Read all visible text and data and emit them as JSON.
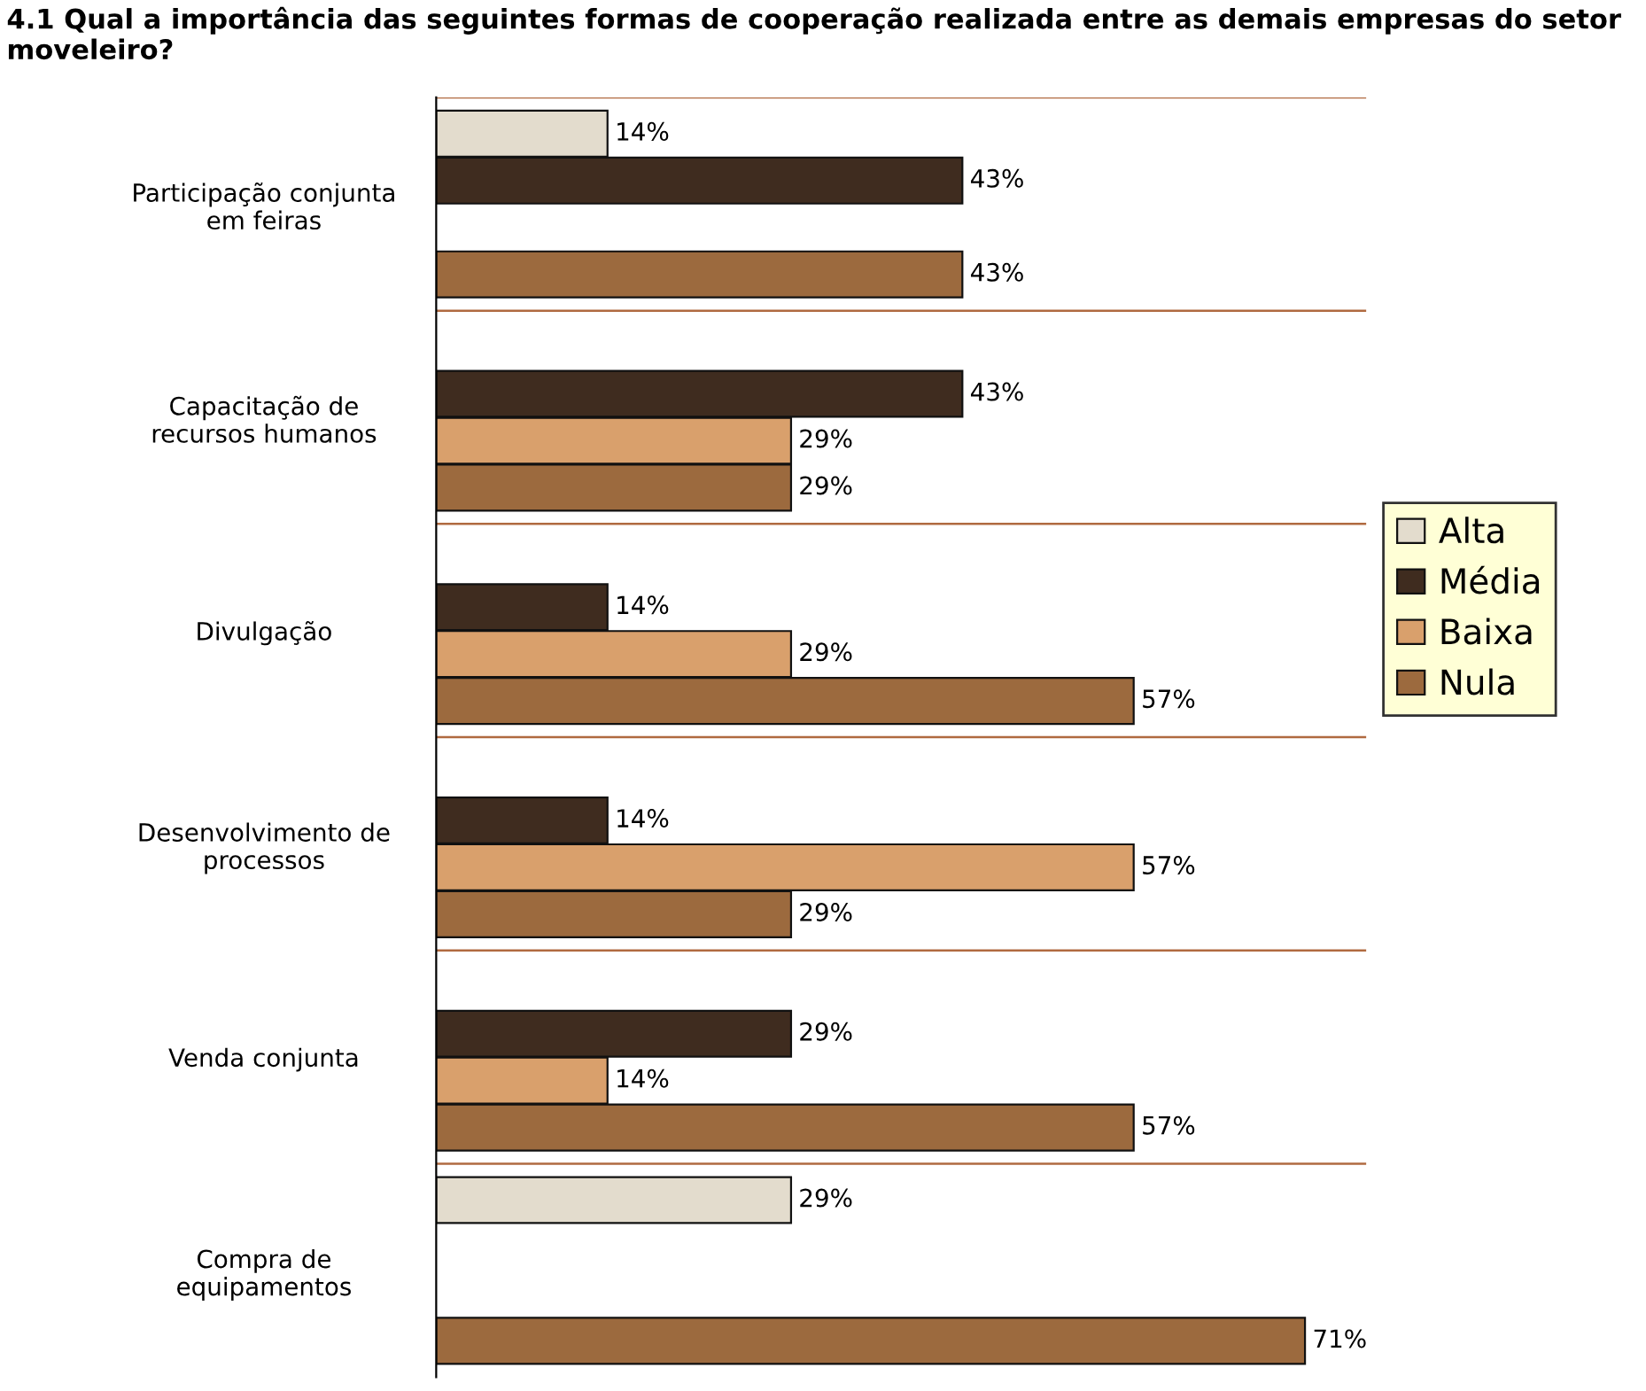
{
  "chart_data": {
    "type": "bar",
    "orientation": "horizontal",
    "title": "4.1 Qual a importância das seguintes formas de cooperação realizada entre as demais empresas do setor moveleiro?",
    "categories": [
      "Participação conjunta\nem feiras",
      "Capacitação de\nrecursos humanos",
      "Divulgação",
      "Desenvolvimento de\nprocessos",
      "Venda conjunta",
      "Compra de\nequipamentos"
    ],
    "series": [
      {
        "name": "Alta",
        "color": "#e3dccd",
        "values": [
          14,
          null,
          null,
          null,
          null,
          29
        ],
        "value_labels": [
          "14%",
          null,
          null,
          null,
          null,
          "29%"
        ]
      },
      {
        "name": "Média",
        "color": "#3f2c1f",
        "values": [
          43,
          43,
          14,
          14,
          29,
          null
        ],
        "value_labels": [
          "43%",
          "43%",
          "14%",
          "14%",
          "29%",
          null
        ]
      },
      {
        "name": "Baixa",
        "color": "#d9a06c",
        "values": [
          null,
          29,
          29,
          57,
          14,
          null
        ],
        "value_labels": [
          null,
          "29%",
          "29%",
          "57%",
          "14%",
          null
        ]
      },
      {
        "name": "Nula",
        "color": "#9c6a3e",
        "values": [
          43,
          29,
          57,
          29,
          57,
          71
        ],
        "value_labels": [
          "43%",
          "29%",
          "57%",
          "29%",
          "57%",
          "71%"
        ]
      }
    ],
    "xlim": [
      0,
      76
    ],
    "tick_labels": "y",
    "grid": "y",
    "legend": "right"
  }
}
